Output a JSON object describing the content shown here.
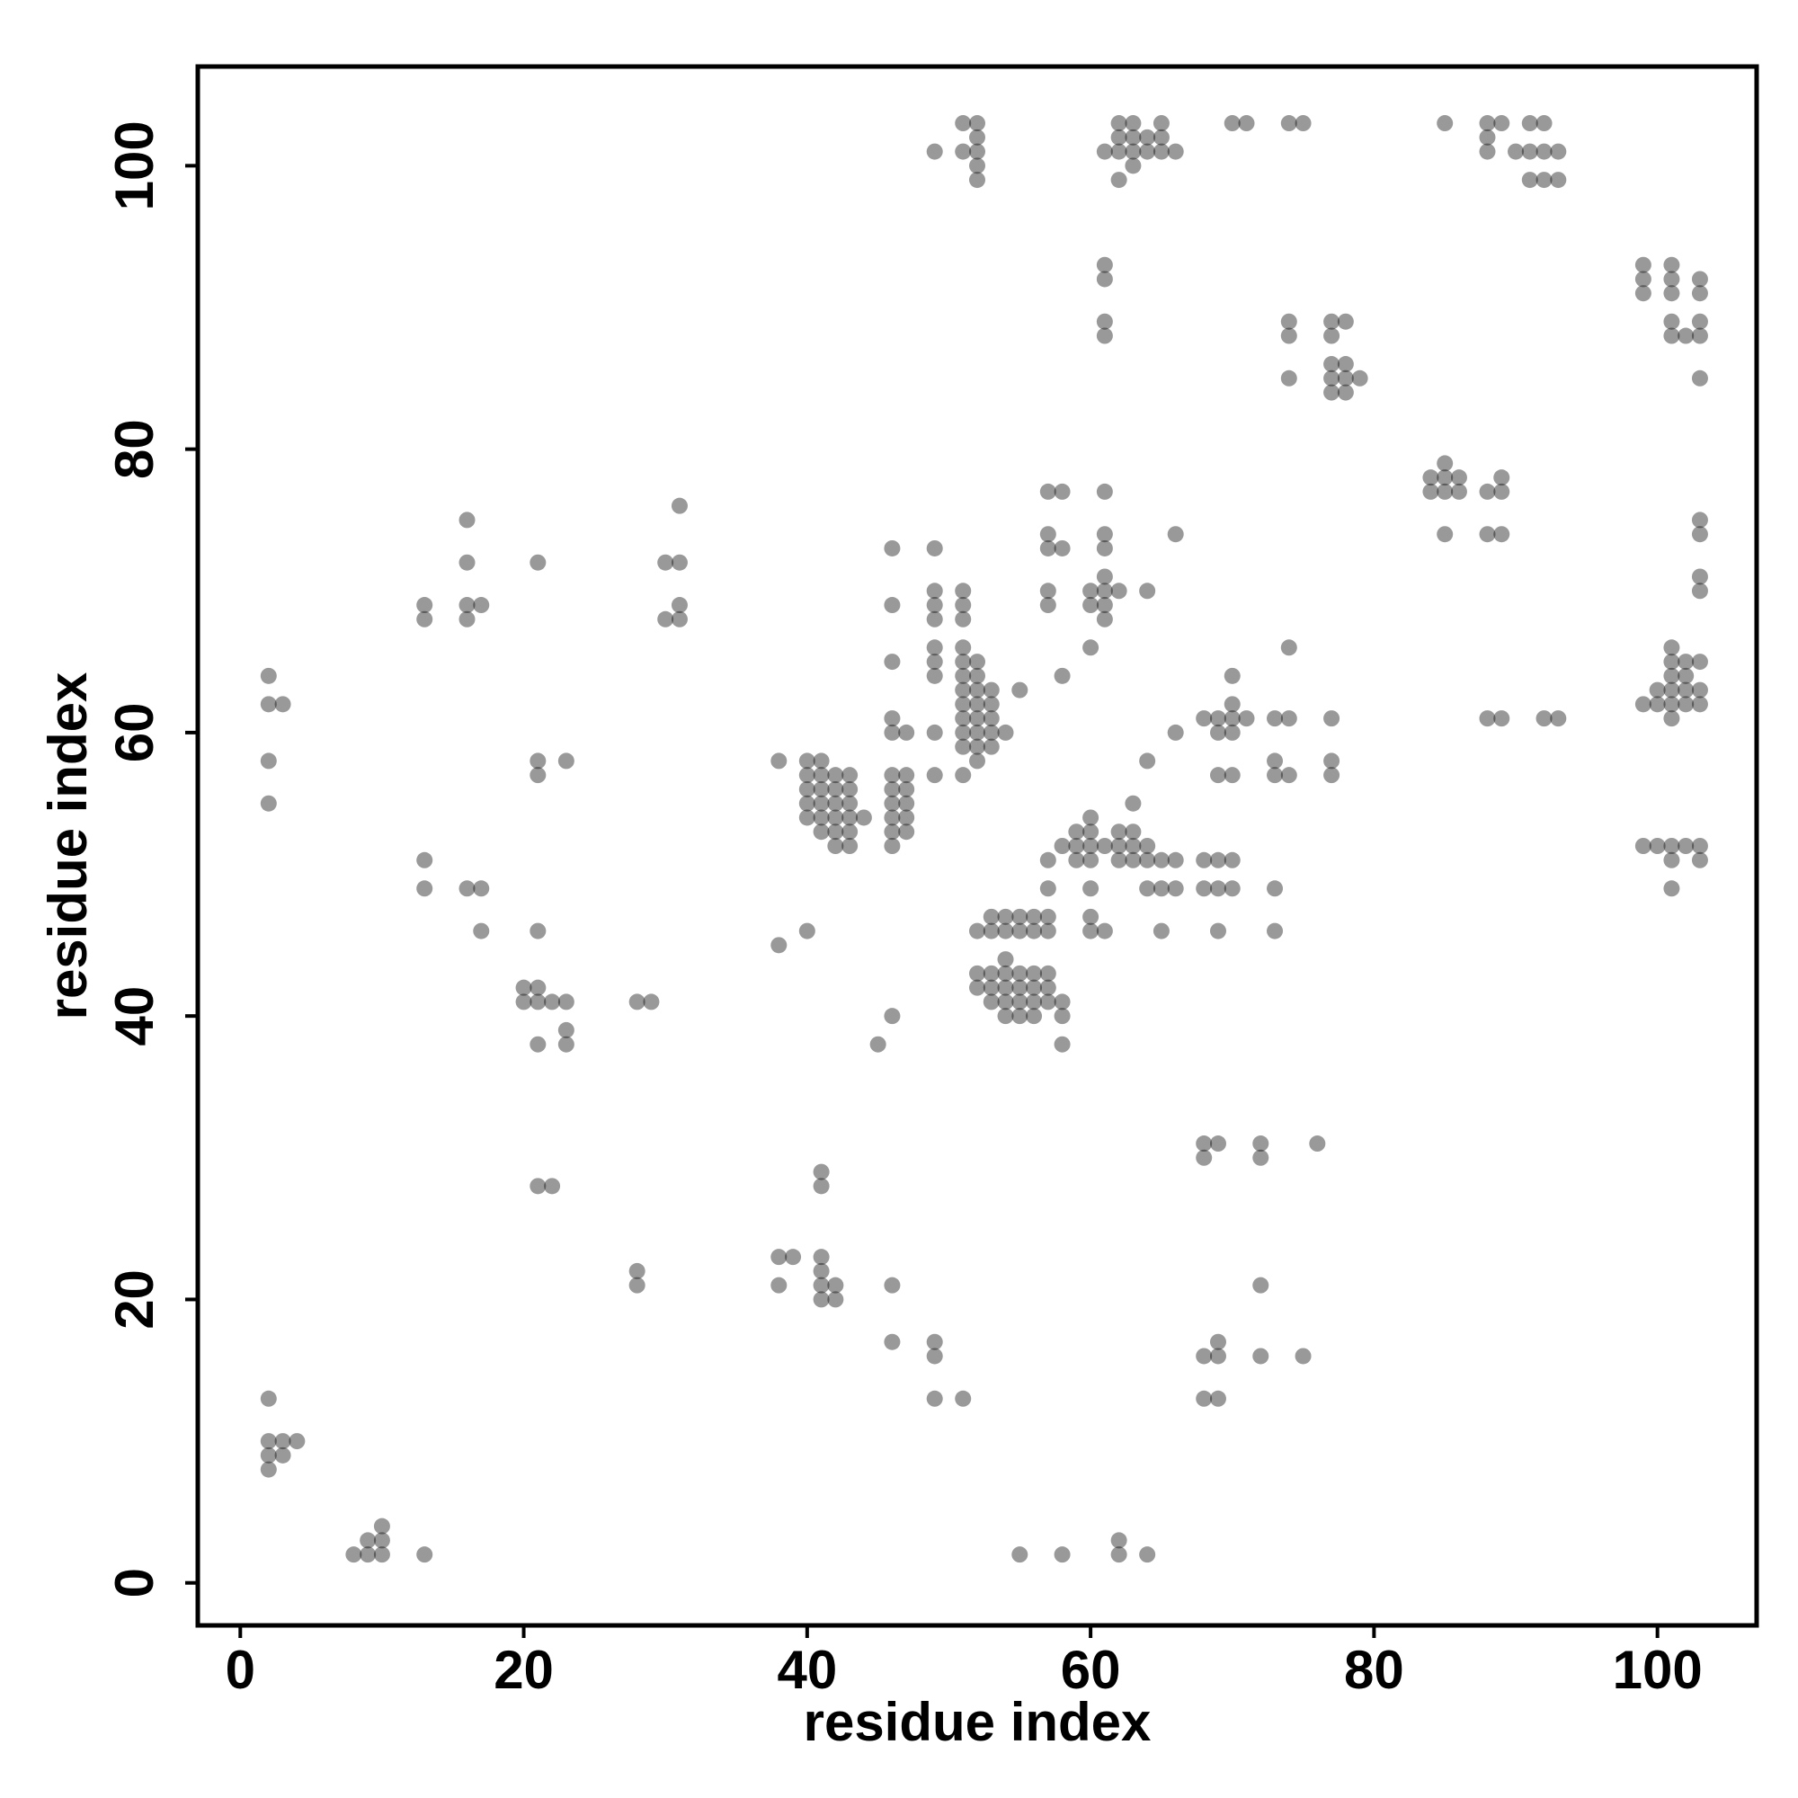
{
  "chart_data": {
    "type": "scatter",
    "xlabel": "residue index",
    "ylabel": "residue index",
    "xlim": [
      -3,
      107
    ],
    "ylim": [
      -3,
      107
    ],
    "xticks": [
      0,
      20,
      40,
      60,
      80,
      100
    ],
    "yticks": [
      0,
      20,
      40,
      60,
      80,
      100
    ],
    "color": "#000000",
    "opacity": 0.4,
    "x": [
      2,
      2,
      3,
      4,
      2,
      3,
      2,
      8,
      9,
      10,
      9,
      10,
      10,
      13,
      2,
      2,
      3,
      2,
      2,
      13,
      13,
      16,
      16,
      16,
      17,
      16,
      13,
      13,
      16,
      17,
      17,
      21,
      21,
      21,
      23,
      21,
      20,
      21,
      20,
      21,
      22,
      23,
      23,
      21,
      23,
      21,
      22,
      28,
      29,
      31,
      30,
      31,
      31,
      30,
      31,
      28,
      28,
      38,
      38,
      40,
      40,
      41,
      40,
      40,
      40,
      40,
      41,
      41,
      41,
      41,
      41,
      42,
      42,
      42,
      42,
      42,
      42,
      43,
      43,
      43,
      43,
      43,
      43,
      44,
      38,
      39,
      38,
      41,
      41,
      41,
      41,
      41,
      42,
      41,
      42,
      45,
      46,
      46,
      46,
      49,
      49,
      49,
      51,
      46,
      46,
      46,
      46,
      46,
      47,
      46,
      47,
      46,
      47,
      46,
      47,
      46,
      47,
      46,
      47,
      46,
      49,
      49,
      49,
      49,
      49,
      49,
      49,
      49,
      49,
      51,
      51,
      51,
      51,
      51,
      52,
      51,
      52,
      51,
      52,
      53,
      51,
      52,
      53,
      51,
      52,
      53,
      51,
      52,
      53,
      54,
      51,
      52,
      53,
      52,
      51,
      55,
      49,
      51,
      52,
      51,
      52,
      52,
      52,
      52,
      52,
      53,
      54,
      55,
      56,
      57,
      53,
      54,
      55,
      56,
      57,
      54,
      52,
      53,
      54,
      55,
      56,
      57,
      52,
      53,
      54,
      55,
      56,
      57,
      53,
      54,
      55,
      56,
      57,
      58,
      54,
      55,
      56,
      58,
      58,
      55,
      58,
      62,
      62,
      64,
      57,
      58,
      57,
      57,
      58,
      57,
      57,
      58,
      57,
      57,
      58,
      59,
      60,
      59,
      60,
      59,
      60,
      60,
      60,
      60,
      60,
      61,
      61,
      62,
      63,
      62,
      63,
      64,
      62,
      63,
      64,
      65,
      66,
      63,
      64,
      64,
      65,
      66,
      65,
      66,
      60,
      61,
      60,
      61,
      61,
      61,
      61,
      61,
      61,
      62,
      64,
      60,
      66,
      61,
      61,
      61,
      61,
      62,
      63,
      65,
      62,
      63,
      64,
      65,
      61,
      62,
      63,
      64,
      65,
      66,
      63,
      62,
      68,
      69,
      70,
      69,
      70,
      70,
      71,
      70,
      69,
      70,
      68,
      69,
      70,
      68,
      69,
      70,
      69,
      73,
      74,
      73,
      73,
      74,
      74,
      73,
      73,
      77,
      77,
      77,
      68,
      69,
      68,
      72,
      72,
      76,
      72,
      68,
      69,
      69,
      72,
      75,
      68,
      69,
      70,
      71,
      74,
      75,
      74,
      74,
      74,
      77,
      78,
      77,
      77,
      78,
      77,
      78,
      79,
      77,
      78,
      84,
      85,
      85,
      86,
      84,
      85,
      86,
      85,
      88,
      89,
      89,
      88,
      89,
      85,
      88,
      89,
      91,
      92,
      88,
      88,
      90,
      91,
      92,
      93,
      91,
      92,
      93,
      88,
      89,
      92,
      93,
      99,
      101,
      99,
      101,
      103,
      99,
      101,
      103,
      101,
      103,
      101,
      102,
      103,
      103,
      103,
      103,
      103,
      103,
      101,
      101,
      102,
      103,
      101,
      102,
      100,
      101,
      102,
      103,
      99,
      100,
      101,
      102,
      103,
      101,
      99,
      100,
      101,
      102,
      103,
      101,
      103,
      101
    ],
    "values": [
      13,
      10,
      10,
      10,
      9,
      9,
      8,
      2,
      2,
      2,
      3,
      3,
      4,
      2,
      64,
      62,
      62,
      58,
      55,
      69,
      68,
      75,
      72,
      69,
      69,
      68,
      51,
      49,
      49,
      49,
      46,
      72,
      58,
      57,
      58,
      46,
      42,
      42,
      41,
      41,
      41,
      41,
      39,
      38,
      38,
      28,
      28,
      41,
      41,
      76,
      72,
      72,
      69,
      68,
      68,
      22,
      21,
      58,
      45,
      46,
      58,
      58,
      57,
      56,
      55,
      54,
      57,
      56,
      55,
      54,
      53,
      57,
      56,
      55,
      54,
      53,
      52,
      57,
      56,
      55,
      54,
      53,
      52,
      54,
      23,
      23,
      21,
      29,
      28,
      23,
      22,
      21,
      21,
      20,
      20,
      38,
      40,
      21,
      17,
      17,
      16,
      13,
      13,
      73,
      69,
      65,
      61,
      60,
      60,
      57,
      57,
      56,
      56,
      55,
      55,
      54,
      54,
      53,
      53,
      52,
      73,
      70,
      69,
      68,
      66,
      65,
      64,
      60,
      57,
      70,
      69,
      68,
      66,
      65,
      65,
      64,
      64,
      63,
      63,
      63,
      62,
      62,
      62,
      61,
      61,
      61,
      60,
      60,
      60,
      60,
      59,
      59,
      59,
      58,
      57,
      63,
      101,
      103,
      103,
      101,
      102,
      101,
      100,
      99,
      46,
      47,
      47,
      47,
      47,
      47,
      46,
      46,
      46,
      46,
      46,
      44,
      43,
      43,
      43,
      43,
      43,
      43,
      42,
      42,
      42,
      42,
      42,
      42,
      41,
      41,
      41,
      41,
      41,
      41,
      40,
      40,
      40,
      40,
      38,
      2,
      2,
      3,
      2,
      2,
      77,
      77,
      74,
      73,
      73,
      70,
      69,
      64,
      51,
      49,
      52,
      53,
      53,
      52,
      52,
      51,
      51,
      54,
      49,
      47,
      46,
      46,
      52,
      53,
      53,
      52,
      52,
      52,
      51,
      51,
      51,
      51,
      51,
      55,
      58,
      49,
      49,
      49,
      46,
      60,
      70,
      70,
      69,
      69,
      71,
      74,
      73,
      77,
      68,
      70,
      70,
      66,
      74,
      93,
      92,
      89,
      88,
      103,
      103,
      103,
      102,
      102,
      102,
      102,
      101,
      101,
      101,
      101,
      101,
      101,
      100,
      99,
      61,
      61,
      62,
      60,
      60,
      61,
      61,
      64,
      57,
      57,
      51,
      51,
      51,
      49,
      49,
      49,
      46,
      61,
      61,
      58,
      57,
      57,
      66,
      49,
      46,
      61,
      58,
      57,
      31,
      31,
      30,
      31,
      30,
      31,
      21,
      16,
      16,
      17,
      16,
      16,
      13,
      13,
      103,
      103,
      103,
      103,
      89,
      88,
      85,
      89,
      89,
      88,
      86,
      86,
      85,
      85,
      85,
      84,
      84,
      78,
      79,
      78,
      78,
      77,
      77,
      77,
      74,
      77,
      78,
      77,
      74,
      74,
      103,
      103,
      103,
      103,
      103,
      102,
      101,
      101,
      101,
      101,
      101,
      99,
      99,
      99,
      61,
      61,
      61,
      61,
      93,
      93,
      92,
      92,
      92,
      91,
      91,
      91,
      89,
      89,
      88,
      88,
      88,
      85,
      75,
      74,
      71,
      70,
      66,
      65,
      65,
      65,
      64,
      64,
      63,
      63,
      63,
      63,
      62,
      62,
      62,
      62,
      62,
      61,
      52,
      52,
      52,
      52,
      52,
      51,
      51,
      49
    ]
  }
}
